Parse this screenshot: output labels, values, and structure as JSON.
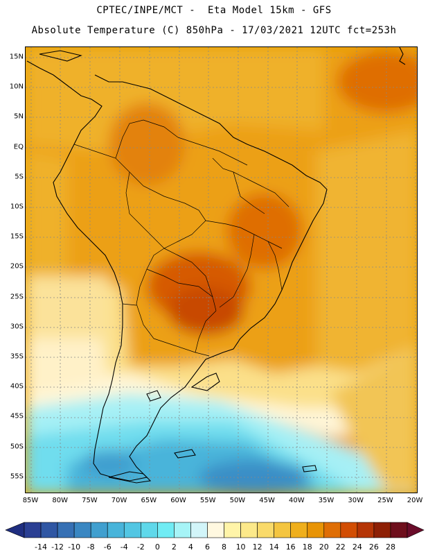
{
  "title": {
    "line1": "CPTEC/INPE/MCT -  Eta Model 15km - GFS",
    "line2": "Absolute Temperature (C) 850hPa - 17/03/2021 12UTC fct=253h"
  },
  "map": {
    "lat_labels": [
      "15N",
      "10N",
      "5N",
      "EQ",
      "5S",
      "10S",
      "15S",
      "20S",
      "25S",
      "30S",
      "35S",
      "40S",
      "45S",
      "50S",
      "55S"
    ],
    "lon_labels": [
      "85W",
      "80W",
      "75W",
      "70W",
      "65W",
      "60W",
      "55W",
      "50W",
      "45W",
      "40W",
      "35W",
      "30W",
      "25W",
      "20W"
    ]
  },
  "colorbar": {
    "labels": [
      "-14",
      "-12",
      "-10",
      "-8",
      "-6",
      "-4",
      "-2",
      "0",
      "2",
      "4",
      "6",
      "8",
      "10",
      "12",
      "14",
      "16",
      "18",
      "20",
      "22",
      "24",
      "26",
      "28"
    ],
    "colors": [
      "#2a3f93",
      "#2f56a3",
      "#3670b4",
      "#3a87c2",
      "#409fcf",
      "#48b4da",
      "#52c6e3",
      "#5fd8ea",
      "#70ecf4",
      "#a6f4f7",
      "#d2f5f9",
      "#fff8e0",
      "#fff4a8",
      "#fce98a",
      "#f9da6a",
      "#f4c540",
      "#efaf1c",
      "#e89406",
      "#df6e05",
      "#d24e04",
      "#b53506",
      "#8e2005",
      "#6e0f1c"
    ],
    "end_colors": {
      "left": "#1f2e80",
      "right": "#6a0c2a"
    }
  }
}
